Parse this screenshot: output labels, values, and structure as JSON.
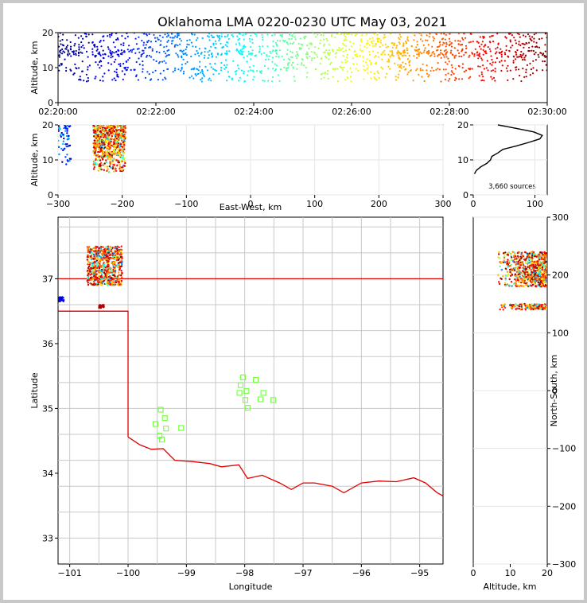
{
  "chart_data": [
    {
      "id": "time-altitude",
      "type": "scatter",
      "title": "Oklahoma LMA 0220-0230 UTC May 03, 2021",
      "xlabel": "",
      "ylabel": "Altitude, km",
      "x_ticks": [
        "02:20:00",
        "02:22:00",
        "02:24:00",
        "02:26:00",
        "02:28:00",
        "02:30:00"
      ],
      "x_range_minutes": [
        0,
        10
      ],
      "y_ticks": [
        "0",
        "10",
        "20"
      ],
      "ylim": [
        0,
        20
      ],
      "color_by": "time",
      "description_of_points": "continuous band of sources between ~6 and 20 km altitude across the full 10-minute window"
    },
    {
      "id": "eastwest-altitude",
      "type": "scatter",
      "xlabel": "East-West, km",
      "ylabel": "Altitude, km",
      "x_ticks": [
        "−300",
        "−200",
        "−100",
        "0",
        "100",
        "200",
        "300"
      ],
      "xlim": [
        -300,
        300
      ],
      "y_ticks": [
        "0",
        "10",
        "20"
      ],
      "ylim": [
        0,
        20
      ],
      "clusters": [
        {
          "x_range": [
            -300,
            -280
          ],
          "alt_range": [
            8,
            20
          ]
        },
        {
          "x_range": [
            -245,
            -195
          ],
          "alt_range": [
            6,
            20
          ]
        }
      ]
    },
    {
      "id": "altitude-histogram",
      "type": "line",
      "x_ticks": [
        "0",
        "100"
      ],
      "xlim": [
        0,
        120
      ],
      "y_ticks": [
        "0",
        "10",
        "20"
      ],
      "ylim": [
        0,
        20
      ],
      "annotation": "3,660 sources",
      "profile": [
        {
          "alt": 6,
          "count": 2
        },
        {
          "alt": 7,
          "count": 5
        },
        {
          "alt": 8,
          "count": 12
        },
        {
          "alt": 9,
          "count": 22
        },
        {
          "alt": 10,
          "count": 28
        },
        {
          "alt": 11,
          "count": 30
        },
        {
          "alt": 12,
          "count": 40
        },
        {
          "alt": 13,
          "count": 48
        },
        {
          "alt": 14,
          "count": 70
        },
        {
          "alt": 15,
          "count": 90
        },
        {
          "alt": 16,
          "count": 108
        },
        {
          "alt": 17,
          "count": 112
        },
        {
          "alt": 18,
          "count": 98
        },
        {
          "alt": 19,
          "count": 70
        },
        {
          "alt": 20,
          "count": 40
        }
      ]
    },
    {
      "id": "plan-view",
      "type": "scatter",
      "xlabel": "Longitude",
      "ylabel": "Latitude",
      "x_ticks": [
        "−101",
        "−100",
        "−99",
        "−98",
        "−97",
        "−96",
        "−95"
      ],
      "xlim": [
        -101.2,
        -94.6
      ],
      "y_ticks": [
        "33",
        "34",
        "35",
        "36",
        "37"
      ],
      "ylim": [
        32.6,
        37.95
      ],
      "clusters": [
        {
          "lon_range": [
            -100.7,
            -100.1
          ],
          "lat_range": [
            36.9,
            37.5
          ]
        },
        {
          "lon_range": [
            -101.2,
            -101.1
          ],
          "lat_range": [
            36.65,
            36.72
          ]
        },
        {
          "lon_range": [
            -100.5,
            -100.4
          ],
          "lat_range": [
            36.55,
            36.6
          ]
        }
      ],
      "stations": [
        {
          "lon": -98.03,
          "lat": 35.48
        },
        {
          "lon": -97.81,
          "lat": 35.44
        },
        {
          "lon": -98.07,
          "lat": 35.36
        },
        {
          "lon": -98.09,
          "lat": 35.24
        },
        {
          "lon": -97.97,
          "lat": 35.27
        },
        {
          "lon": -97.68,
          "lat": 35.24
        },
        {
          "lon": -97.73,
          "lat": 35.14
        },
        {
          "lon": -97.99,
          "lat": 35.13
        },
        {
          "lon": -97.51,
          "lat": 35.13
        },
        {
          "lon": -97.95,
          "lat": 35.01
        },
        {
          "lon": -99.44,
          "lat": 34.98
        },
        {
          "lon": -99.37,
          "lat": 34.85
        },
        {
          "lon": -99.53,
          "lat": 34.76
        },
        {
          "lon": -99.35,
          "lat": 34.69
        },
        {
          "lon": -99.09,
          "lat": 34.7
        },
        {
          "lon": -99.46,
          "lat": 34.58
        },
        {
          "lon": -99.42,
          "lat": 34.52
        }
      ]
    },
    {
      "id": "altitude-northsouth",
      "type": "scatter",
      "xlabel": "Altitude, km",
      "ylabel": "North-South, km",
      "x_ticks": [
        "0",
        "10",
        "20"
      ],
      "xlim": [
        0,
        20
      ],
      "y_ticks": [
        "−300",
        "−200",
        "−100",
        "0",
        "100",
        "200",
        "300"
      ],
      "ylim": [
        -300,
        300
      ],
      "clusters": [
        {
          "ns_range": [
            180,
            240
          ],
          "alt_range": [
            6,
            20
          ]
        },
        {
          "ns_range": [
            140,
            150
          ],
          "alt_range": [
            6,
            20
          ]
        }
      ]
    }
  ],
  "colors": {
    "border": "#e00000",
    "county_lines": "#c8c8c8",
    "station": "#7cff4a",
    "histogram": "#000000"
  }
}
